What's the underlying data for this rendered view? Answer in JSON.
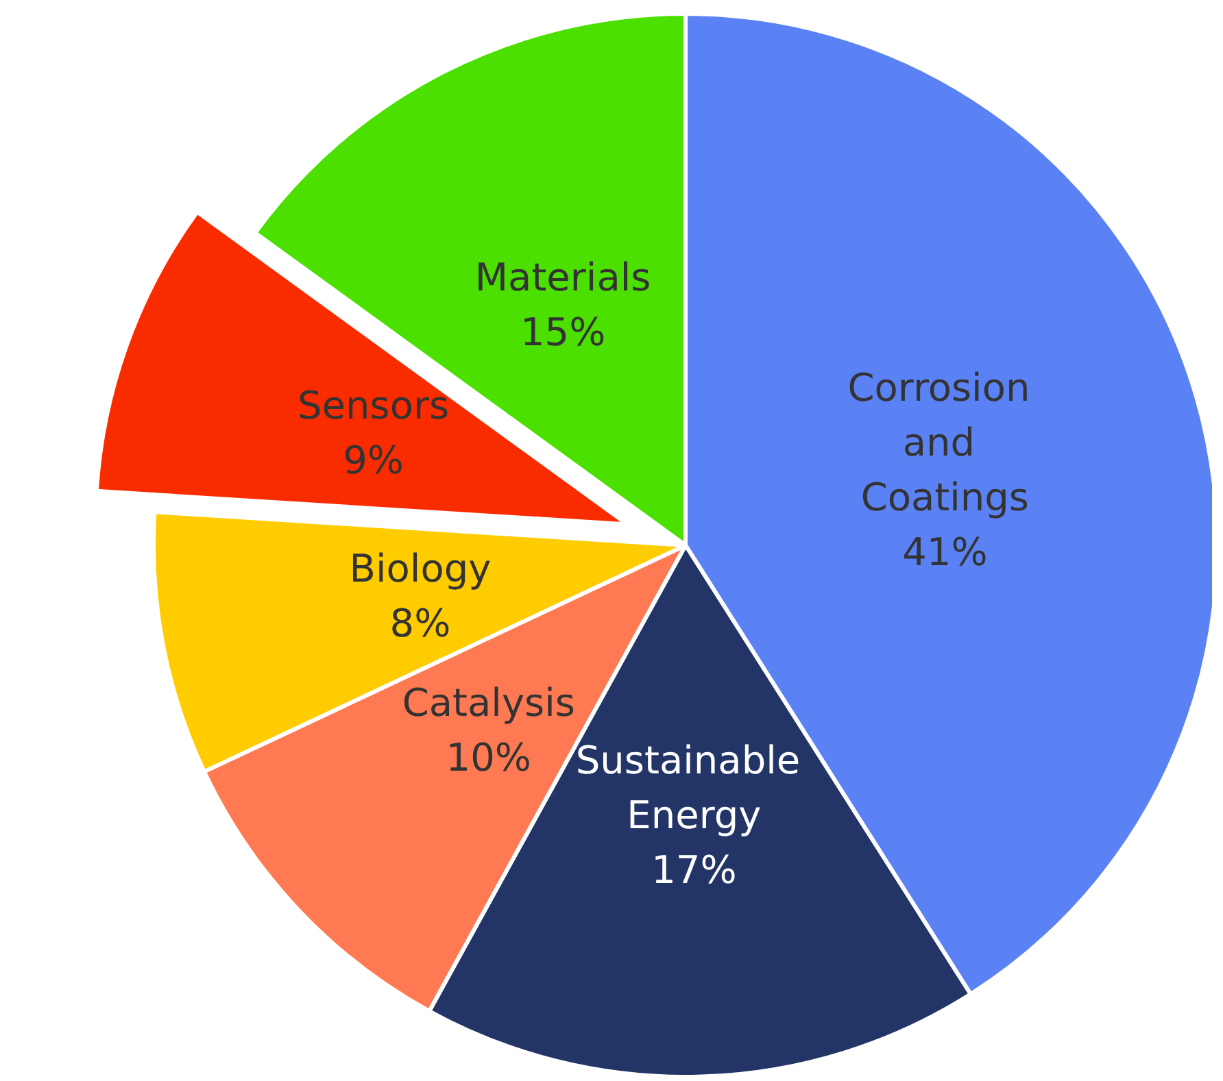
{
  "chart_data": {
    "type": "pie",
    "categories": [
      "Corrosion and Coatings",
      "Sustainable Energy",
      "Catalysis",
      "Biology",
      "Sensors",
      "Materials"
    ],
    "values": [
      41,
      17,
      10,
      8,
      9,
      15
    ],
    "value_labels": [
      "41%",
      "17%",
      "10%",
      "8%",
      "9%",
      "15%"
    ],
    "colors": [
      "#5b82f5",
      "#233466",
      "#ff7a52",
      "#ffcc00",
      "#f92c00",
      "#4be000"
    ],
    "legend": false
  }
}
